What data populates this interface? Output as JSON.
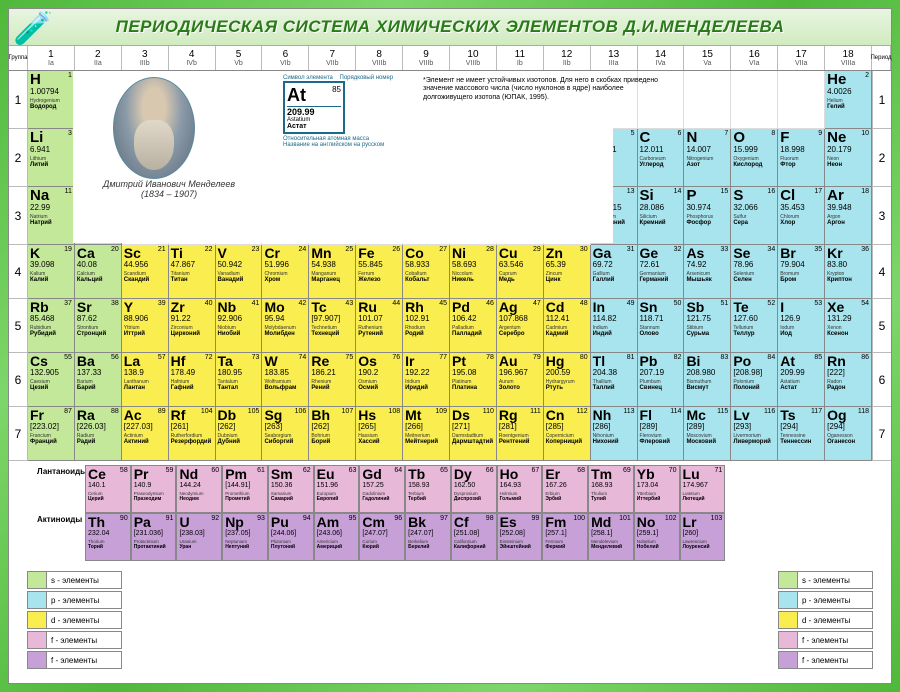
{
  "title": "ПЕРИОДИЧЕСКАЯ СИСТЕМА ХИМИЧЕСКИХ ЭЛЕМЕНТОВ Д.И.МЕНДЕЛЕЕВА",
  "group_label": "Группа",
  "period_label": "Период",
  "groups": [
    {
      "n": "1",
      "r": "Ia"
    },
    {
      "n": "2",
      "r": "IIa"
    },
    {
      "n": "3",
      "r": "IIIb"
    },
    {
      "n": "4",
      "r": "IVb"
    },
    {
      "n": "5",
      "r": "Vb"
    },
    {
      "n": "6",
      "r": "VIb"
    },
    {
      "n": "7",
      "r": "VIIb"
    },
    {
      "n": "8",
      "r": "VIIIb"
    },
    {
      "n": "9",
      "r": "VIIIb"
    },
    {
      "n": "10",
      "r": "VIIIb"
    },
    {
      "n": "11",
      "r": "Ib"
    },
    {
      "n": "12",
      "r": "IIb"
    },
    {
      "n": "13",
      "r": "IIIa"
    },
    {
      "n": "14",
      "r": "IVa"
    },
    {
      "n": "15",
      "r": "Va"
    },
    {
      "n": "16",
      "r": "VIa"
    },
    {
      "n": "17",
      "r": "VIIa"
    },
    {
      "n": "18",
      "r": "VIIIa"
    }
  ],
  "colors": {
    "s": "#c4e89a",
    "p": "#a8e4ed",
    "d": "#f9ed4f",
    "f1": "#e8b8d8",
    "f2": "#c8a0d8",
    "border": "#888888",
    "bg": "#ffffff",
    "title": "#2a7a1a"
  },
  "legend_element": {
    "label_symbol": "Символ элемента",
    "label_num": "Порядковый номер",
    "sym": "At",
    "num": "85",
    "mass": "209.99",
    "label_mass": "Относительная атомная масса",
    "name_en": "Astatium",
    "name_ru": "Астат",
    "label_name": "Название на английском на русском"
  },
  "portrait_caption": "Дмитрий Иванович Менделеев",
  "portrait_years": "(1834 – 1907)",
  "note": "*Элемент не имеет устойчивых изотопов. Для него в скобках приведено значение массового числа (число нуклонов в ядре) наиболее долгоживущего изотопа (ЮПАК, 1995).",
  "legend_rows": [
    {
      "c": "s",
      "t": "s - элементы"
    },
    {
      "c": "p",
      "t": "p - элементы"
    },
    {
      "c": "d",
      "t": "d - элементы"
    },
    {
      "c": "f1",
      "t": "f - элементы"
    },
    {
      "c": "f2",
      "t": "f - элементы"
    }
  ],
  "lanth_label": "Лантаноиды",
  "act_label": "Актиноиды",
  "rows": [
    [
      {
        "s": "H",
        "n": 1,
        "m": "1.00794",
        "en": "Hydrogenium",
        "ru": "Водород",
        "b": "s"
      },
      null,
      null,
      null,
      null,
      null,
      null,
      null,
      null,
      null,
      null,
      null,
      null,
      null,
      null,
      null,
      null,
      {
        "s": "He",
        "n": 2,
        "m": "4.0026",
        "en": "Helium",
        "ru": "Гелий",
        "b": "p"
      }
    ],
    [
      {
        "s": "Li",
        "n": 3,
        "m": "6.941",
        "en": "Lithium",
        "ru": "Литий",
        "b": "s"
      },
      {
        "s": "Be",
        "n": 4,
        "m": "9.0122",
        "en": "Beryllium",
        "ru": "Бериллий",
        "b": "s"
      },
      null,
      null,
      null,
      null,
      null,
      null,
      null,
      null,
      null,
      null,
      {
        "s": "B",
        "n": 5,
        "m": "10.811",
        "en": "Borium",
        "ru": "Бор",
        "b": "p"
      },
      {
        "s": "C",
        "n": 6,
        "m": "12.011",
        "en": "Carboneum",
        "ru": "Углерод",
        "b": "p"
      },
      {
        "s": "N",
        "n": 7,
        "m": "14.007",
        "en": "Nitrogenium",
        "ru": "Азот",
        "b": "p"
      },
      {
        "s": "O",
        "n": 8,
        "m": "15.999",
        "en": "Oxygenium",
        "ru": "Кислород",
        "b": "p"
      },
      {
        "s": "F",
        "n": 9,
        "m": "18.998",
        "en": "Fluorum",
        "ru": "Фтор",
        "b": "p"
      },
      {
        "s": "Ne",
        "n": 10,
        "m": "20.179",
        "en": "Neon",
        "ru": "Неон",
        "b": "p"
      }
    ],
    [
      {
        "s": "Na",
        "n": 11,
        "m": "22.99",
        "en": "Natrium",
        "ru": "Натрий",
        "b": "s"
      },
      {
        "s": "Mg",
        "n": 12,
        "m": "24.305",
        "en": "Magnesium",
        "ru": "Магний",
        "b": "s"
      },
      null,
      null,
      null,
      null,
      null,
      null,
      null,
      null,
      null,
      null,
      {
        "s": "Al",
        "n": 13,
        "m": "26.9815",
        "en": "Aluminium",
        "ru": "Алюминий",
        "b": "p"
      },
      {
        "s": "Si",
        "n": 14,
        "m": "28.086",
        "en": "Silicium",
        "ru": "Кремний",
        "b": "p"
      },
      {
        "s": "P",
        "n": 15,
        "m": "30.974",
        "en": "Phosphorus",
        "ru": "Фосфор",
        "b": "p"
      },
      {
        "s": "S",
        "n": 16,
        "m": "32.066",
        "en": "Sulfur",
        "ru": "Сера",
        "b": "p"
      },
      {
        "s": "Cl",
        "n": 17,
        "m": "35.453",
        "en": "Chlorum",
        "ru": "Хлор",
        "b": "p"
      },
      {
        "s": "Ar",
        "n": 18,
        "m": "39.948",
        "en": "Argon",
        "ru": "Аргон",
        "b": "p"
      }
    ],
    [
      {
        "s": "K",
        "n": 19,
        "m": "39.098",
        "en": "Kalium",
        "ru": "Калий",
        "b": "s"
      },
      {
        "s": "Ca",
        "n": 20,
        "m": "40.08",
        "en": "Calcium",
        "ru": "Кальций",
        "b": "s"
      },
      {
        "s": "Sc",
        "n": 21,
        "m": "44.956",
        "en": "Scandium",
        "ru": "Скандий",
        "b": "d"
      },
      {
        "s": "Ti",
        "n": 22,
        "m": "47.867",
        "en": "Titanium",
        "ru": "Титан",
        "b": "d"
      },
      {
        "s": "V",
        "n": 23,
        "m": "50.942",
        "en": "Vanadium",
        "ru": "Ванадий",
        "b": "d"
      },
      {
        "s": "Cr",
        "n": 24,
        "m": "51.996",
        "en": "Chromium",
        "ru": "Хром",
        "b": "d"
      },
      {
        "s": "Mn",
        "n": 25,
        "m": "54.938",
        "en": "Manganum",
        "ru": "Марганец",
        "b": "d"
      },
      {
        "s": "Fe",
        "n": 26,
        "m": "55.845",
        "en": "Ferrum",
        "ru": "Железо",
        "b": "d"
      },
      {
        "s": "Co",
        "n": 27,
        "m": "58.933",
        "en": "Cobaltum",
        "ru": "Кобальт",
        "b": "d"
      },
      {
        "s": "Ni",
        "n": 28,
        "m": "58.693",
        "en": "Niccolum",
        "ru": "Никель",
        "b": "d"
      },
      {
        "s": "Cu",
        "n": 29,
        "m": "63.546",
        "en": "Cuprum",
        "ru": "Медь",
        "b": "d"
      },
      {
        "s": "Zn",
        "n": 30,
        "m": "65.39",
        "en": "Zincum",
        "ru": "Цинк",
        "b": "d"
      },
      {
        "s": "Ga",
        "n": 31,
        "m": "69.72",
        "en": "Gallium",
        "ru": "Галлий",
        "b": "p"
      },
      {
        "s": "Ge",
        "n": 32,
        "m": "72.61",
        "en": "Germanium",
        "ru": "Германий",
        "b": "p"
      },
      {
        "s": "As",
        "n": 33,
        "m": "74.92",
        "en": "Arsenicum",
        "ru": "Мышьяк",
        "b": "p"
      },
      {
        "s": "Se",
        "n": 34,
        "m": "78.96",
        "en": "Selenium",
        "ru": "Селен",
        "b": "p"
      },
      {
        "s": "Br",
        "n": 35,
        "m": "79.904",
        "en": "Bromum",
        "ru": "Бром",
        "b": "p"
      },
      {
        "s": "Kr",
        "n": 36,
        "m": "83.80",
        "en": "Krypton",
        "ru": "Криптон",
        "b": "p"
      }
    ],
    [
      {
        "s": "Rb",
        "n": 37,
        "m": "85.468",
        "en": "Rubidium",
        "ru": "Рубидий",
        "b": "s"
      },
      {
        "s": "Sr",
        "n": 38,
        "m": "87.62",
        "en": "Strontium",
        "ru": "Стронций",
        "b": "s"
      },
      {
        "s": "Y",
        "n": 39,
        "m": "88.906",
        "en": "Yttrium",
        "ru": "Иттрий",
        "b": "d"
      },
      {
        "s": "Zr",
        "n": 40,
        "m": "91.22",
        "en": "Zirconium",
        "ru": "Цирконий",
        "b": "d"
      },
      {
        "s": "Nb",
        "n": 41,
        "m": "92.906",
        "en": "Niobium",
        "ru": "Ниобий",
        "b": "d"
      },
      {
        "s": "Mo",
        "n": 42,
        "m": "95.94",
        "en": "Molybdaenum",
        "ru": "Молибден",
        "b": "d"
      },
      {
        "s": "Tc",
        "n": 43,
        "m": "[97.907]",
        "en": "Technetium",
        "ru": "Технеций",
        "b": "d"
      },
      {
        "s": "Ru",
        "n": 44,
        "m": "101.07",
        "en": "Ruthenium",
        "ru": "Рутений",
        "b": "d"
      },
      {
        "s": "Rh",
        "n": 45,
        "m": "102.91",
        "en": "Rhodium",
        "ru": "Родий",
        "b": "d"
      },
      {
        "s": "Pd",
        "n": 46,
        "m": "106.42",
        "en": "Palladium",
        "ru": "Палладий",
        "b": "d"
      },
      {
        "s": "Ag",
        "n": 47,
        "m": "107.868",
        "en": "Argentum",
        "ru": "Серебро",
        "b": "d"
      },
      {
        "s": "Cd",
        "n": 48,
        "m": "112.41",
        "en": "Cadmium",
        "ru": "Кадмий",
        "b": "d"
      },
      {
        "s": "In",
        "n": 49,
        "m": "114.82",
        "en": "Indium",
        "ru": "Индий",
        "b": "p"
      },
      {
        "s": "Sn",
        "n": 50,
        "m": "118.71",
        "en": "Stannum",
        "ru": "Олово",
        "b": "p"
      },
      {
        "s": "Sb",
        "n": 51,
        "m": "121.75",
        "en": "Stibium",
        "ru": "Сурьма",
        "b": "p"
      },
      {
        "s": "Te",
        "n": 52,
        "m": "127.60",
        "en": "Tellurium",
        "ru": "Теллур",
        "b": "p"
      },
      {
        "s": "I",
        "n": 53,
        "m": "126.9",
        "en": "Iodum",
        "ru": "Иод",
        "b": "p"
      },
      {
        "s": "Xe",
        "n": 54,
        "m": "131.29",
        "en": "Xenon",
        "ru": "Ксенон",
        "b": "p"
      }
    ],
    [
      {
        "s": "Cs",
        "n": 55,
        "m": "132.905",
        "en": "Caesium",
        "ru": "Цезий",
        "b": "s"
      },
      {
        "s": "Ba",
        "n": 56,
        "m": "137.33",
        "en": "Barium",
        "ru": "Барий",
        "b": "s"
      },
      {
        "s": "La",
        "n": 57,
        "m": "138.9",
        "en": "Lanthanum",
        "ru": "Лантан",
        "b": "d"
      },
      {
        "s": "Hf",
        "n": 72,
        "m": "178.49",
        "en": "Hafnium",
        "ru": "Гафний",
        "b": "d"
      },
      {
        "s": "Ta",
        "n": 73,
        "m": "180.95",
        "en": "Tantalum",
        "ru": "Тантал",
        "b": "d"
      },
      {
        "s": "W",
        "n": 74,
        "m": "183.85",
        "en": "Wolframium",
        "ru": "Вольфрам",
        "b": "d"
      },
      {
        "s": "Re",
        "n": 75,
        "m": "186.21",
        "en": "Rhenium",
        "ru": "Рений",
        "b": "d"
      },
      {
        "s": "Os",
        "n": 76,
        "m": "190.2",
        "en": "Osmium",
        "ru": "Осмий",
        "b": "d"
      },
      {
        "s": "Ir",
        "n": 77,
        "m": "192.22",
        "en": "Iridium",
        "ru": "Иридий",
        "b": "d"
      },
      {
        "s": "Pt",
        "n": 78,
        "m": "195.08",
        "en": "Platinum",
        "ru": "Платина",
        "b": "d"
      },
      {
        "s": "Au",
        "n": 79,
        "m": "196.967",
        "en": "Aurum",
        "ru": "Золото",
        "b": "d"
      },
      {
        "s": "Hg",
        "n": 80,
        "m": "200.59",
        "en": "Hydrargyrum",
        "ru": "Ртуть",
        "b": "d"
      },
      {
        "s": "Tl",
        "n": 81,
        "m": "204.38",
        "en": "Thallium",
        "ru": "Таллий",
        "b": "p"
      },
      {
        "s": "Pb",
        "n": 82,
        "m": "207.19",
        "en": "Plumbum",
        "ru": "Свинец",
        "b": "p"
      },
      {
        "s": "Bi",
        "n": 83,
        "m": "208.980",
        "en": "Bismuthum",
        "ru": "Висмут",
        "b": "p"
      },
      {
        "s": "Po",
        "n": 84,
        "m": "[208.98]",
        "en": "Polonium",
        "ru": "Полоний",
        "b": "p"
      },
      {
        "s": "At",
        "n": 85,
        "m": "209.99",
        "en": "Astatium",
        "ru": "Астат",
        "b": "p"
      },
      {
        "s": "Rn",
        "n": 86,
        "m": "[222]",
        "en": "Radon",
        "ru": "Радон",
        "b": "p"
      }
    ],
    [
      {
        "s": "Fr",
        "n": 87,
        "m": "[223.02]",
        "en": "Francium",
        "ru": "Франций",
        "b": "s"
      },
      {
        "s": "Ra",
        "n": 88,
        "m": "[226.03]",
        "en": "Radium",
        "ru": "Радий",
        "b": "s"
      },
      {
        "s": "Ac",
        "n": 89,
        "m": "[227.03]",
        "en": "Actinium",
        "ru": "Актиний",
        "b": "d"
      },
      {
        "s": "Rf",
        "n": 104,
        "m": "[261]",
        "en": "Rutherfordium",
        "ru": "Резерфордий",
        "b": "d"
      },
      {
        "s": "Db",
        "n": 105,
        "m": "[262]",
        "en": "Dubnium",
        "ru": "Дубний",
        "b": "d"
      },
      {
        "s": "Sg",
        "n": 106,
        "m": "[263]",
        "en": "Seaborgium",
        "ru": "Сиборгий",
        "b": "d"
      },
      {
        "s": "Bh",
        "n": 107,
        "m": "[262]",
        "en": "Bohrium",
        "ru": "Борий",
        "b": "d"
      },
      {
        "s": "Hs",
        "n": 108,
        "m": "[265]",
        "en": "Hassium",
        "ru": "Хассий",
        "b": "d"
      },
      {
        "s": "Mt",
        "n": 109,
        "m": "[266]",
        "en": "Meitnerium",
        "ru": "Мейтнерий",
        "b": "d"
      },
      {
        "s": "Ds",
        "n": 110,
        "m": "[271]",
        "en": "Darmstadtium",
        "ru": "Дармштадтий",
        "b": "d"
      },
      {
        "s": "Rg",
        "n": 111,
        "m": "[281]",
        "en": "Roentgenium",
        "ru": "Рентгений",
        "b": "d"
      },
      {
        "s": "Cn",
        "n": 112,
        "m": "[285]",
        "en": "Copernicium",
        "ru": "Коперниций",
        "b": "d"
      },
      {
        "s": "Nh",
        "n": 113,
        "m": "[286]",
        "en": "Nihonium",
        "ru": "Нихоний",
        "b": "p"
      },
      {
        "s": "Fl",
        "n": 114,
        "m": "[289]",
        "en": "Flerovium",
        "ru": "Флеровий",
        "b": "p"
      },
      {
        "s": "Mc",
        "n": 115,
        "m": "[289]",
        "en": "Moscovium",
        "ru": "Московий",
        "b": "p"
      },
      {
        "s": "Lv",
        "n": 116,
        "m": "[293]",
        "en": "Livermorium",
        "ru": "Ливерморий",
        "b": "p"
      },
      {
        "s": "Ts",
        "n": 117,
        "m": "[294]",
        "en": "Tennessine",
        "ru": "Теннессин",
        "b": "p"
      },
      {
        "s": "Og",
        "n": 118,
        "m": "[294]",
        "en": "Oganesson",
        "ru": "Оганесон",
        "b": "p"
      }
    ]
  ],
  "lanthanides": [
    {
      "s": "Ce",
      "n": 58,
      "m": "140.1",
      "en": "Cerium",
      "ru": "Церий"
    },
    {
      "s": "Pr",
      "n": 59,
      "m": "140.9",
      "en": "Praseodymium",
      "ru": "Празеодим"
    },
    {
      "s": "Nd",
      "n": 60,
      "m": "144.24",
      "en": "Neodymium",
      "ru": "Неодим"
    },
    {
      "s": "Pm",
      "n": 61,
      "m": "[144.91]",
      "en": "Promethium",
      "ru": "Прометий"
    },
    {
      "s": "Sm",
      "n": 62,
      "m": "150.36",
      "en": "Samarium",
      "ru": "Самарий"
    },
    {
      "s": "Eu",
      "n": 63,
      "m": "151.96",
      "en": "Europium",
      "ru": "Европий"
    },
    {
      "s": "Gd",
      "n": 64,
      "m": "157.25",
      "en": "Gadolinium",
      "ru": "Гадолиний"
    },
    {
      "s": "Tb",
      "n": 65,
      "m": "158.93",
      "en": "Terbium",
      "ru": "Тербий"
    },
    {
      "s": "Dy",
      "n": 66,
      "m": "162.50",
      "en": "Dysprosium",
      "ru": "Диспрозий"
    },
    {
      "s": "Ho",
      "n": 67,
      "m": "164.93",
      "en": "Holmium",
      "ru": "Гольмий"
    },
    {
      "s": "Er",
      "n": 68,
      "m": "167.26",
      "en": "Erbium",
      "ru": "Эрбий"
    },
    {
      "s": "Tm",
      "n": 69,
      "m": "168.93",
      "en": "Thulium",
      "ru": "Тулий"
    },
    {
      "s": "Yb",
      "n": 70,
      "m": "173.04",
      "en": "Ytterbium",
      "ru": "Иттербий"
    },
    {
      "s": "Lu",
      "n": 71,
      "m": "174.967",
      "en": "Lutetium",
      "ru": "Лютеций"
    }
  ],
  "actinides": [
    {
      "s": "Th",
      "n": 90,
      "m": "232.04",
      "en": "Thorium",
      "ru": "Торий"
    },
    {
      "s": "Pa",
      "n": 91,
      "m": "[231.036]",
      "en": "Protactinium",
      "ru": "Протактиний"
    },
    {
      "s": "U",
      "n": 92,
      "m": "[238.03]",
      "en": "Uranium",
      "ru": "Уран"
    },
    {
      "s": "Np",
      "n": 93,
      "m": "[237.05]",
      "en": "Neptunium",
      "ru": "Нептуний"
    },
    {
      "s": "Pu",
      "n": 94,
      "m": "[244.06]",
      "en": "Plutonium",
      "ru": "Плутоний"
    },
    {
      "s": "Am",
      "n": 95,
      "m": "[243.06]",
      "en": "Americium",
      "ru": "Америций"
    },
    {
      "s": "Cm",
      "n": 96,
      "m": "[247.07]",
      "en": "Curium",
      "ru": "Кюрий"
    },
    {
      "s": "Bk",
      "n": 97,
      "m": "[247.07]",
      "en": "Berkelium",
      "ru": "Берклий"
    },
    {
      "s": "Cf",
      "n": 98,
      "m": "[251.08]",
      "en": "Californium",
      "ru": "Калифорний"
    },
    {
      "s": "Es",
      "n": 99,
      "m": "[252.08]",
      "en": "Einsteinium",
      "ru": "Эйнштейний"
    },
    {
      "s": "Fm",
      "n": 100,
      "m": "[257.1]",
      "en": "Fermium",
      "ru": "Фермий"
    },
    {
      "s": "Md",
      "n": 101,
      "m": "[258.1]",
      "en": "Mendelevium",
      "ru": "Менделевий"
    },
    {
      "s": "No",
      "n": 102,
      "m": "[259.1]",
      "en": "Nobelium",
      "ru": "Нобелий"
    },
    {
      "s": "Lr",
      "n": 103,
      "m": "[260]",
      "en": "Lawrencium",
      "ru": "Лоуренсий"
    }
  ]
}
